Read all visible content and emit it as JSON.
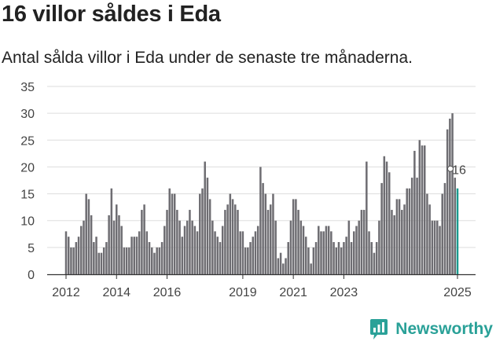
{
  "header": {
    "title": "16 villor såldes i Eda",
    "subtitle": "Antal sålda villor i Eda under de senaste tre månaderna."
  },
  "brand": {
    "name": "Newsworthy",
    "icon": "newsworthy-logo-icon"
  },
  "colors": {
    "bar": "#6e6d72",
    "highlight": "#1a9b8f",
    "brand": "#2aa198",
    "grid": "#dddddd"
  },
  "chart_data": {
    "type": "bar",
    "x_tick_labels": [
      "2012",
      "2014",
      "2016",
      "2019",
      "2021",
      "2023",
      "2025"
    ],
    "y_ticks": [
      0,
      5,
      10,
      15,
      20,
      25,
      30,
      35
    ],
    "ylim": [
      0,
      35
    ],
    "grid": true,
    "highlight_label": "16",
    "values": [
      8,
      7,
      5,
      5,
      6,
      7,
      9,
      10,
      15,
      14,
      11,
      6,
      7,
      4,
      4,
      5,
      6,
      11,
      16,
      10,
      13,
      11,
      9,
      5,
      5,
      5,
      7,
      7,
      7,
      8,
      12,
      13,
      8,
      6,
      5,
      4,
      5,
      5,
      6,
      9,
      12,
      16,
      15,
      15,
      12,
      10,
      7,
      9,
      10,
      12,
      10,
      9,
      8,
      15,
      16,
      21,
      18,
      14,
      10,
      8,
      7,
      6,
      9,
      12,
      13,
      15,
      14,
      13,
      12,
      8,
      8,
      5,
      5,
      6,
      7,
      8,
      9,
      20,
      17,
      15,
      12,
      13,
      15,
      10,
      3,
      4,
      2,
      3,
      6,
      10,
      14,
      14,
      12,
      10,
      9,
      7,
      5,
      2,
      5,
      6,
      9,
      8,
      8,
      9,
      9,
      8,
      6,
      5,
      6,
      5,
      6,
      7,
      10,
      6,
      8,
      9,
      10,
      12,
      12,
      21,
      8,
      6,
      4,
      6,
      10,
      17,
      22,
      21,
      19,
      12,
      11,
      14,
      14,
      12,
      13,
      16,
      16,
      18,
      23,
      18,
      25,
      24,
      24,
      15,
      13,
      10,
      10,
      10,
      9,
      15,
      17,
      27,
      29,
      30,
      18,
      16
    ]
  }
}
